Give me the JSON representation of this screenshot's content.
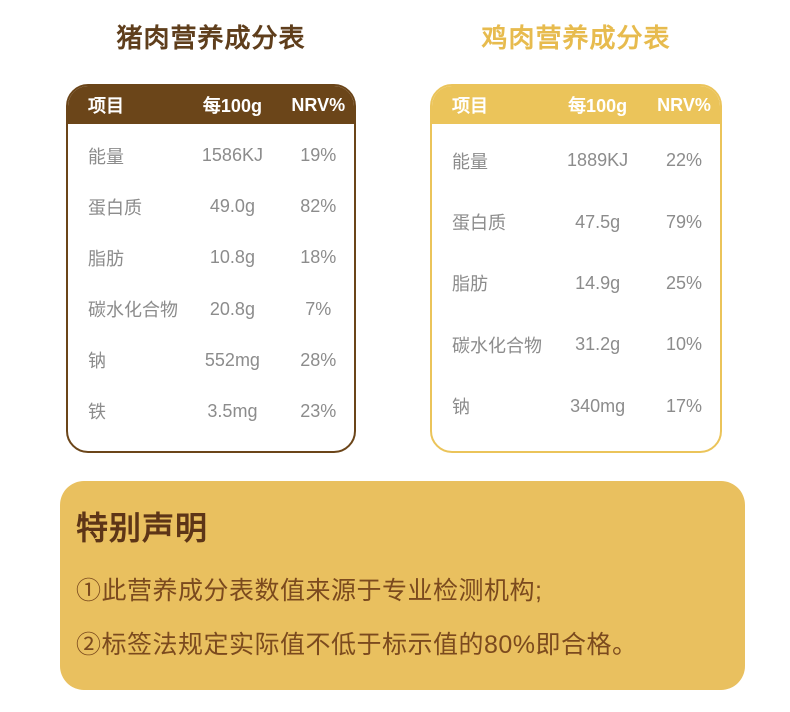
{
  "colors": {
    "pork_accent": "#6b4519",
    "pork_title": "#5f3e1c",
    "chicken_accent": "#ebc45a",
    "chicken_title": "#e7bb4e",
    "row_text": "#8c8c8c",
    "notice_bg": "#e9c05f",
    "notice_title": "#5d3517",
    "notice_text": "#7b4a1e",
    "header_text": "#ffffff"
  },
  "tables": [
    {
      "title": "猪肉营养成分表",
      "header": {
        "col1": "项目",
        "col2": "每100g",
        "col3": "NRV%"
      },
      "rows": [
        {
          "item": "能量",
          "per100g": "1586KJ",
          "nrv": "19%"
        },
        {
          "item": "蛋白质",
          "per100g": "49.0g",
          "nrv": "82%"
        },
        {
          "item": "脂肪",
          "per100g": "10.8g",
          "nrv": "18%"
        },
        {
          "item": "碳水化合物",
          "per100g": "20.8g",
          "nrv": "7%"
        },
        {
          "item": "钠",
          "per100g": "552mg",
          "nrv": "28%"
        },
        {
          "item": "铁",
          "per100g": "3.5mg",
          "nrv": "23%"
        }
      ]
    },
    {
      "title": "鸡肉营养成分表",
      "header": {
        "col1": "项目",
        "col2": "每100g",
        "col3": "NRV%"
      },
      "rows": [
        {
          "item": "能量",
          "per100g": "1889KJ",
          "nrv": "22%"
        },
        {
          "item": "蛋白质",
          "per100g": "47.5g",
          "nrv": "79%"
        },
        {
          "item": "脂肪",
          "per100g": "14.9g",
          "nrv": "25%"
        },
        {
          "item": "碳水化合物",
          "per100g": "31.2g",
          "nrv": "10%"
        },
        {
          "item": "钠",
          "per100g": "340mg",
          "nrv": "17%"
        }
      ]
    }
  ],
  "notice": {
    "title": "特别声明",
    "lines": [
      "①此营养成分表数值来源于专业检测机构;",
      "②标签法规定实际值不低于标示值的80%即合格。"
    ]
  }
}
